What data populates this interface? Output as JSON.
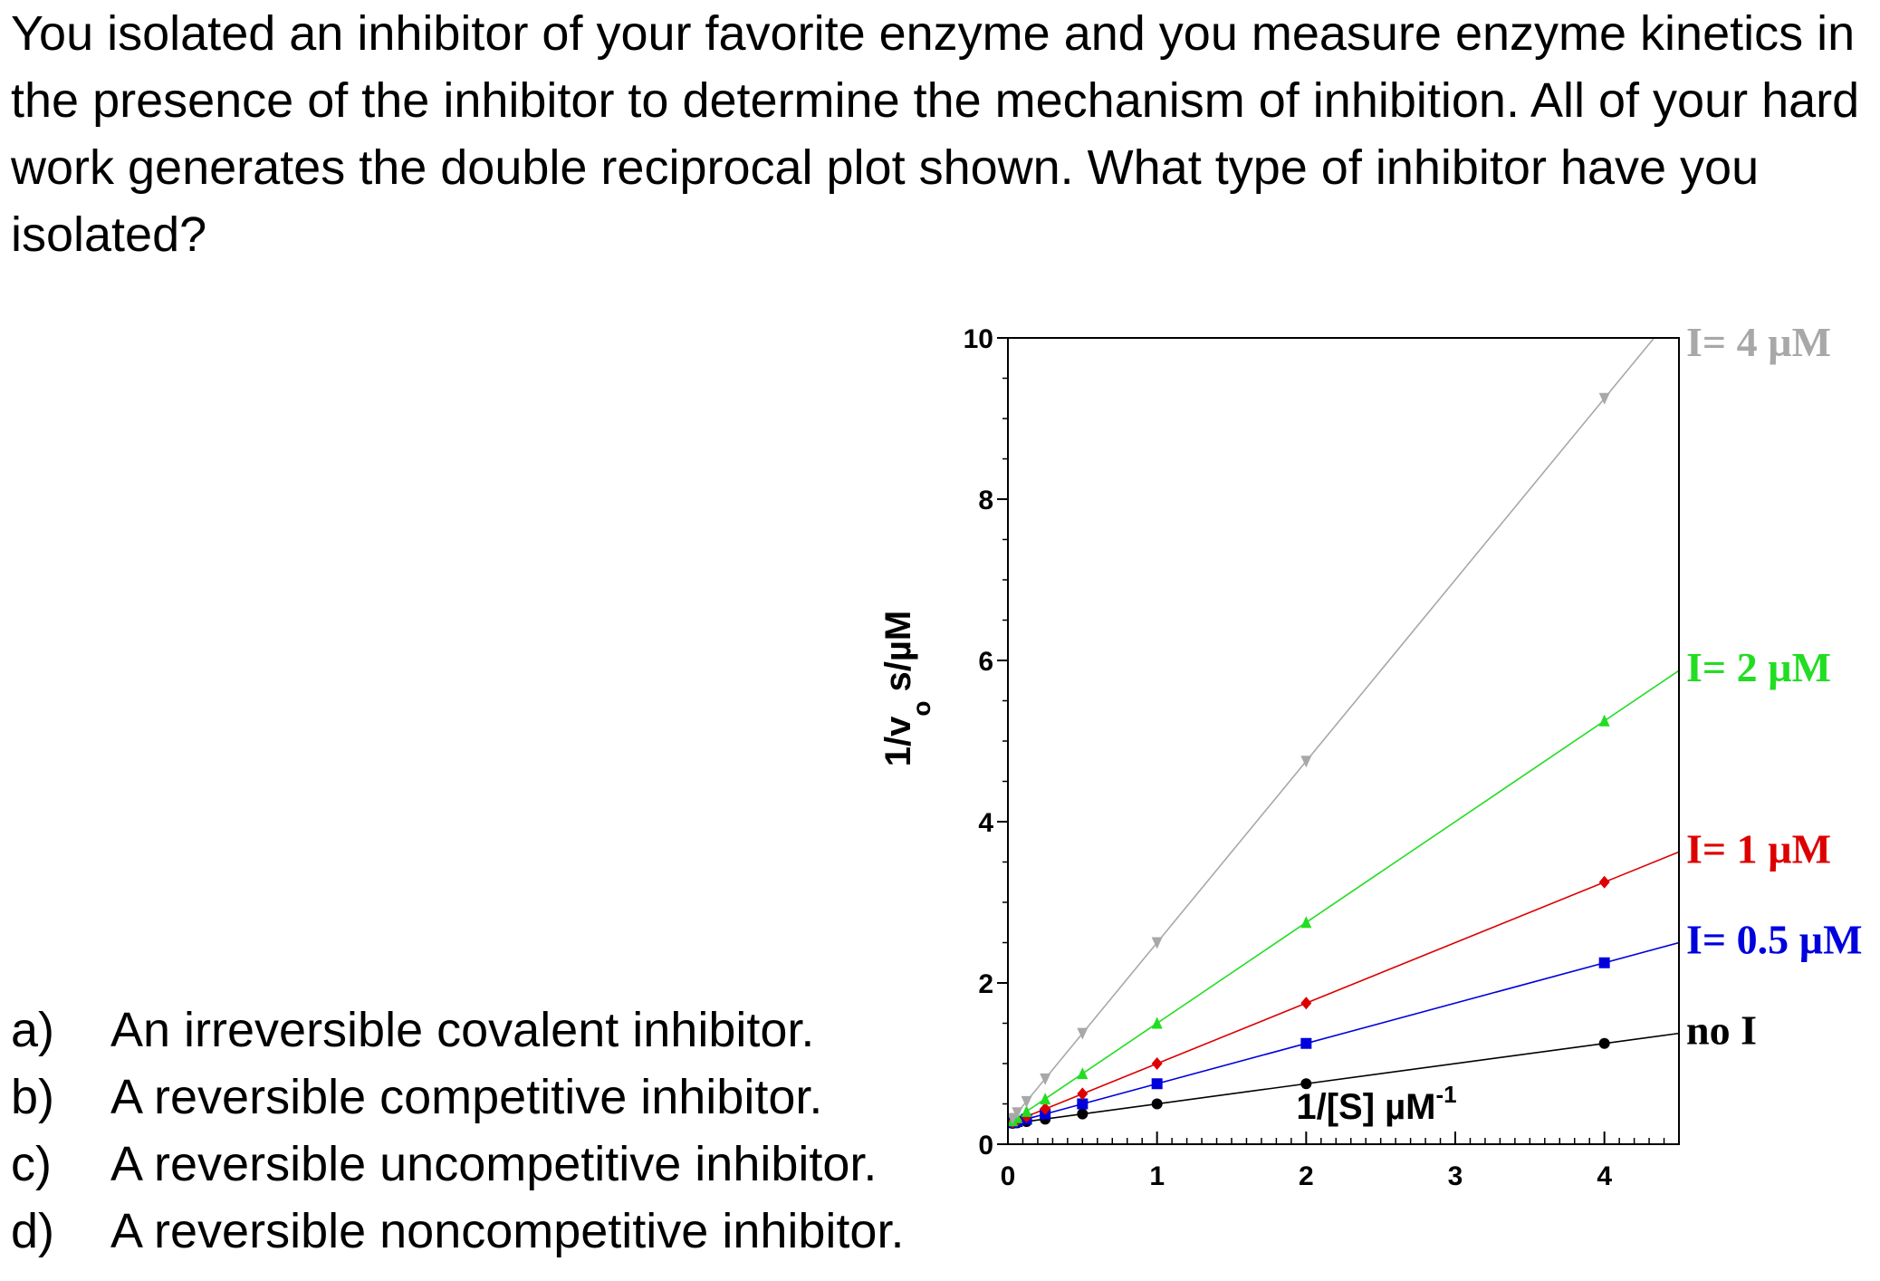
{
  "question": "You isolated an inhibitor of your favorite enzyme and you measure enzyme kinetics in the presence of the inhibitor to determine the mechanism of inhibition.  All of your hard work generates the double reciprocal plot shown.  What type of inhibitor have you isolated?",
  "answers": [
    {
      "letter": "a)",
      "text": "An irreversible covalent inhibitor."
    },
    {
      "letter": "b)",
      "text": "A reversible competitive inhibitor."
    },
    {
      "letter": "c)",
      "text": "A reversible uncompetitive inhibitor."
    },
    {
      "letter": "d)",
      "text": "A reversible noncompetitive inhibitor."
    }
  ],
  "chart_data": {
    "type": "line",
    "xlabel": "1/[S] µM",
    "xlabel_sup": "-1",
    "ylabel": "1/v",
    "ylabel_sub": "o",
    "ylabel_unit": "s/µM",
    "xlim": [
      0,
      4.5
    ],
    "ylim": [
      0,
      10
    ],
    "xticks": [
      "0",
      "1",
      "2",
      "3",
      "4"
    ],
    "yticks": [
      "0",
      "2",
      "4",
      "6",
      "8",
      "10"
    ],
    "grid": false,
    "legend_placement": "right, at line ends",
    "x": [
      0.03125,
      0.0625,
      0.125,
      0.25,
      0.5,
      1,
      2,
      4
    ],
    "series": [
      {
        "name": "no I",
        "color": "#000000",
        "marker": "circle",
        "intercept": 0.25,
        "slope": 0.25,
        "values": [
          0.258,
          0.266,
          0.281,
          0.31,
          0.375,
          0.5,
          0.75,
          1.25
        ]
      },
      {
        "name": "I= 0.5 µM",
        "color": "#0000dd",
        "marker": "square",
        "intercept": 0.25,
        "slope": 0.5,
        "values": [
          0.266,
          0.281,
          0.31,
          0.375,
          0.5,
          0.75,
          1.25,
          2.25
        ]
      },
      {
        "name": "I= 1 µM",
        "color": "#dd0000",
        "marker": "diamond",
        "intercept": 0.25,
        "slope": 0.75,
        "values": [
          0.273,
          0.297,
          0.344,
          0.44,
          0.625,
          1.0,
          1.75,
          3.25
        ]
      },
      {
        "name": "I= 2 µM",
        "color": "#22dd22",
        "marker": "triangle-up",
        "intercept": 0.25,
        "slope": 1.25,
        "values": [
          0.289,
          0.328,
          0.406,
          0.56,
          0.875,
          1.5,
          2.75,
          5.25
        ]
      },
      {
        "name": "I= 4 µM",
        "color": "#a8a8a8",
        "marker": "triangle-down",
        "intercept": 0.25,
        "slope": 2.25,
        "values": [
          0.32,
          0.39,
          0.53,
          0.81,
          1.375,
          2.5,
          4.75,
          9.25
        ]
      }
    ]
  }
}
